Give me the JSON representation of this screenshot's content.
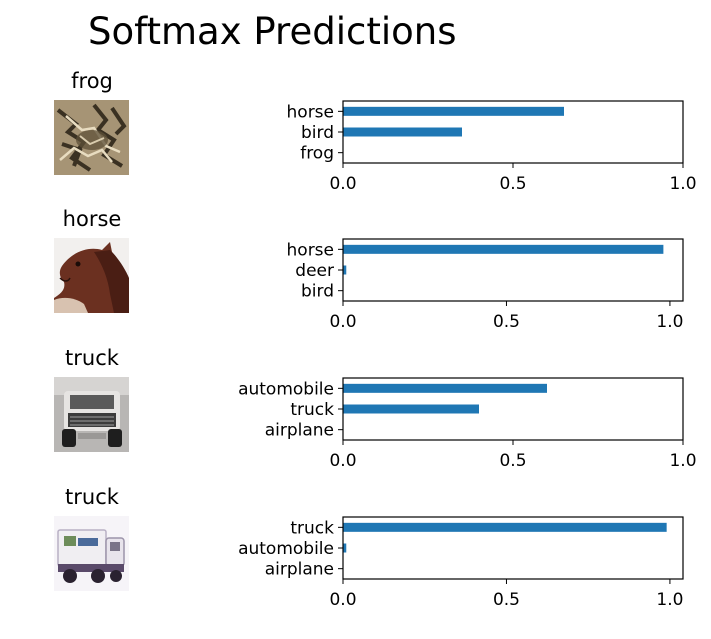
{
  "title": "Softmax Predictions",
  "colors": {
    "bar": "#1f77b4",
    "axis": "#000000"
  },
  "rows": [
    {
      "label": "frog",
      "thumbnail": "frog-thumbnail",
      "chart": {
        "type": "bar",
        "orientation": "horizontal",
        "categories": [
          "horse",
          "bird",
          "frog"
        ],
        "values": [
          0.65,
          0.35,
          0.0
        ],
        "xlim": [
          0,
          1.0
        ],
        "xticks": [
          "0.0",
          "0.5",
          "1.0"
        ]
      }
    },
    {
      "label": "horse",
      "thumbnail": "horse-thumbnail",
      "chart": {
        "type": "bar",
        "orientation": "horizontal",
        "categories": [
          "horse",
          "deer",
          "bird"
        ],
        "values": [
          0.98,
          0.01,
          0.0
        ],
        "xlim": [
          0,
          1.04
        ],
        "xticks": [
          "0.0",
          "0.5",
          "1.0"
        ]
      }
    },
    {
      "label": "truck",
      "thumbnail": "truck-thumbnail",
      "chart": {
        "type": "bar",
        "orientation": "horizontal",
        "categories": [
          "automobile",
          "truck",
          "airplane"
        ],
        "values": [
          0.6,
          0.4,
          0.0
        ],
        "xlim": [
          0,
          1.0
        ],
        "xticks": [
          "0.0",
          "0.5",
          "1.0"
        ]
      }
    },
    {
      "label": "truck",
      "thumbnail": "truck-thumbnail",
      "chart": {
        "type": "bar",
        "orientation": "horizontal",
        "categories": [
          "truck",
          "automobile",
          "airplane"
        ],
        "values": [
          0.99,
          0.01,
          0.0
        ],
        "xlim": [
          0,
          1.04
        ],
        "xticks": [
          "0.0",
          "0.5",
          "1.0"
        ]
      }
    }
  ]
}
